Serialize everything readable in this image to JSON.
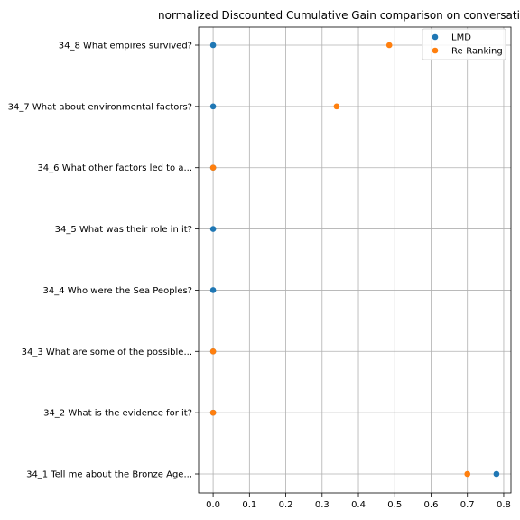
{
  "chart_data": {
    "type": "scatter",
    "title": "normalized Discounted Cumulative Gain comparison on conversation",
    "xlabel": "",
    "ylabel": "",
    "xlim": [
      -0.04,
      0.82
    ],
    "xticks": [
      "0.0",
      "0.1",
      "0.2",
      "0.3",
      "0.4",
      "0.5",
      "0.6",
      "0.7",
      "0.8"
    ],
    "grid": true,
    "legend": "top-right",
    "categories": [
      "34_1 Tell me about the Bronze Age...",
      "34_2 What is the evidence for it?",
      "34_3 What are some of the possible...",
      "34_4 Who were the Sea Peoples?",
      "34_5 What was their role in it?",
      "34_6 What other factors led to a...",
      "34_7 What about environmental factors?",
      "34_8 What empires survived?"
    ],
    "series": [
      {
        "name": "LMD",
        "color": "#1f77b4",
        "values": [
          0.78,
          0.0,
          0.0,
          0.0,
          0.0,
          0.0,
          0.0,
          0.0
        ]
      },
      {
        "name": "Re-Ranking",
        "color": "#ff7f0e",
        "values": [
          0.7,
          0.0,
          0.0,
          null,
          null,
          0.0,
          0.34,
          0.485
        ]
      }
    ]
  }
}
